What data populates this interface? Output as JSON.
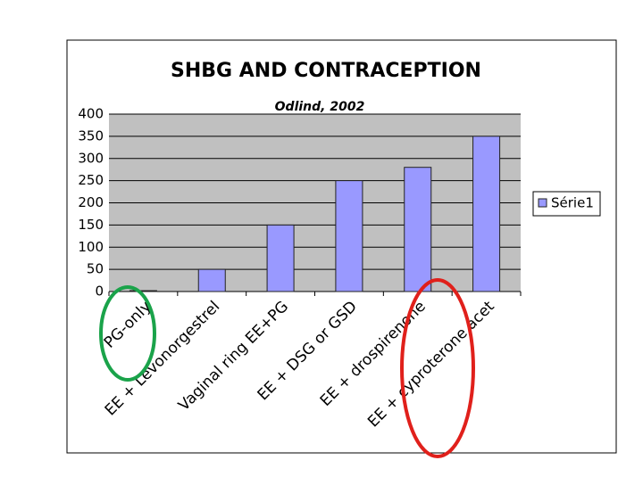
{
  "chart_data": {
    "type": "bar",
    "title": "SHBG AND CONTRACEPTION",
    "subtitle": "Odlind, 2002",
    "categories": [
      "PG-only",
      "EE + Levonorgestrel",
      "Vaginal ring EE+PG",
      "EE + DSG or GSD",
      "EE + drospirenone",
      "EE + cyproterone acet"
    ],
    "series": [
      {
        "name": "Série1",
        "color": "#9999ff",
        "values": [
          2,
          50,
          150,
          250,
          280,
          350
        ]
      }
    ],
    "ylim": [
      0,
      400
    ],
    "yticks": [
      0,
      50,
      100,
      150,
      200,
      250,
      300,
      350,
      400
    ],
    "grid": true,
    "legend": "right"
  }
}
